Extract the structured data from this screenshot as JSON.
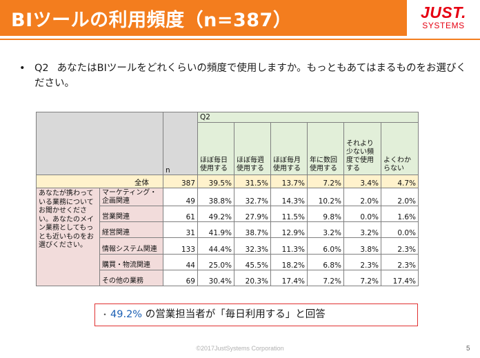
{
  "slide": {
    "title": "BIツールの利用頻度（n=387）",
    "logo_main": "JUST.",
    "logo_sub": "SYSTEMS",
    "bullet": "•",
    "question_no": "Q2",
    "question_text": "あなたはBIツールをどれくらいの頻度で使用しますか。もっともあてはまるものをお選びください。",
    "footer": "©2017JustSystems Corporation",
    "page_number": "5"
  },
  "table": {
    "q_label": "Q2",
    "n_label": "n",
    "columns": [
      "ほぼ毎日使用する",
      "ほぼ毎週使用する",
      "ほぼ毎月使用する",
      "年に数回使用する",
      "それより少ない頻度で使用する",
      "よくわからない"
    ],
    "side_label": "あなたが携わっている業務についてお聞かせください。あなたのメイン業務としてもっとも近いものをお選びください。",
    "total": {
      "label": "全体",
      "n": "387",
      "values": [
        "39.5%",
        "31.5%",
        "13.7%",
        "7.2%",
        "3.4%",
        "4.7%"
      ]
    },
    "rows": [
      {
        "label": "マーケティング・企画関連",
        "n": "49",
        "values": [
          "38.8%",
          "32.7%",
          "14.3%",
          "10.2%",
          "2.0%",
          "2.0%"
        ]
      },
      {
        "label": "営業関連",
        "n": "61",
        "values": [
          "49.2%",
          "27.9%",
          "11.5%",
          "9.8%",
          "0.0%",
          "1.6%"
        ]
      },
      {
        "label": "経営関連",
        "n": "31",
        "values": [
          "41.9%",
          "38.7%",
          "12.9%",
          "3.2%",
          "3.2%",
          "0.0%"
        ]
      },
      {
        "label": "情報システム関連",
        "n": "133",
        "values": [
          "44.4%",
          "32.3%",
          "11.3%",
          "6.0%",
          "3.8%",
          "2.3%"
        ]
      },
      {
        "label": "購買・物流関連",
        "n": "44",
        "values": [
          "25.0%",
          "45.5%",
          "18.2%",
          "6.8%",
          "2.3%",
          "2.3%"
        ]
      },
      {
        "label": "その他の業務",
        "n": "69",
        "values": [
          "30.4%",
          "20.3%",
          "17.4%",
          "7.2%",
          "7.2%",
          "17.4%"
        ]
      }
    ]
  },
  "callout": {
    "bullet": "・",
    "highlight": "49.2%",
    "text": " の営業担当者が「毎日利用する」と回答"
  },
  "colors": {
    "accent_orange": "#f37d1e",
    "logo_red": "#e60012",
    "header_green": "#e2efd9",
    "total_yellow": "#fff2cc",
    "row_pink": "#f2dcdb",
    "callout_border": "#e03030",
    "highlight_blue": "#1a5fb4"
  }
}
